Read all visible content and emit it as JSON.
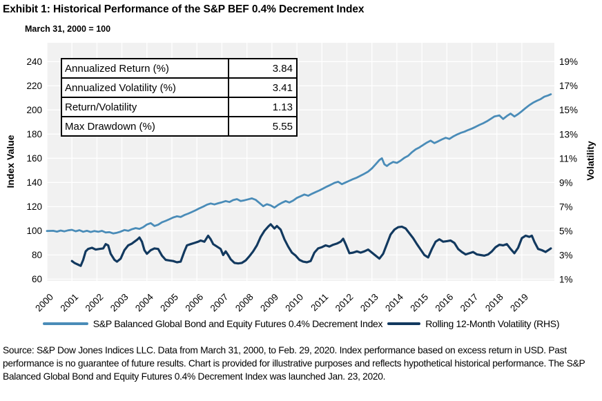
{
  "title": "Exhibit 1: Historical Performance of the S&P BEF 0.4% Decrement Index",
  "subtitle": "March 31, 2000 = 100",
  "stats_table": {
    "rows": [
      {
        "label": "Annualized Return (%)",
        "value": "3.84"
      },
      {
        "label": "Annualized Volatility (%)",
        "value": "3.41"
      },
      {
        "label": "Return/Volatility",
        "value": "1.13"
      },
      {
        "label": "Max Drawdown (%)",
        "value": "5.55"
      }
    ]
  },
  "legend": [
    {
      "label": "S&P Balanced Global Bond and Equity Futures 0.4% Decrement Index",
      "color": "#4A8CB8"
    },
    {
      "label": "Rolling 12-Month Volatility (RHS)",
      "color": "#12395F"
    }
  ],
  "source_text": "Source: S&P Dow Jones Indices LLC. Data from March 31, 2000, to Feb. 29, 2020. Index performance based on excess return in USD. Past performance is no guarantee of future results. Chart is provided for illustrative purposes and reflects hypothetical historical performance. The S&P Balanced Global Bond and Equity Futures 0.4% Decrement Index was launched Jan. 23, 2020.",
  "chart_data": {
    "type": "line",
    "title": "Historical Performance of the S&P BEF 0.4% Decrement Index",
    "plot_bg": "#F1F1F1",
    "gridline_color": "#FFFFFF",
    "grid": "on",
    "legend_position": "bottom",
    "x_axis": {
      "labels": [
        "2000",
        "2001",
        "2002",
        "2003",
        "2004",
        "2005",
        "2006",
        "2007",
        "2008",
        "2009",
        "2010",
        "2011",
        "2012",
        "2013",
        "2014",
        "2015",
        "2016",
        "2017",
        "2018",
        "2019"
      ],
      "range_years": [
        2000,
        2020.3
      ]
    },
    "left_axis": {
      "label": "Index Value",
      "ticks": [
        240,
        220,
        200,
        180,
        160,
        140,
        120,
        100,
        80,
        60
      ],
      "range": [
        60,
        240
      ]
    },
    "right_axis": {
      "label": "Volatility",
      "ticks": [
        19,
        17,
        15,
        13,
        11,
        9,
        7,
        5,
        3,
        1
      ],
      "suffix": "%",
      "range": [
        1,
        19
      ]
    },
    "series": [
      {
        "name": "S&P Balanced Global Bond and Equity Futures 0.4% Decrement Index",
        "axis": "left",
        "color": "#4A8CB8",
        "width": 2.8,
        "points": [
          [
            2000.0,
            99.8
          ],
          [
            2000.25,
            100.0
          ],
          [
            2000.4,
            99.3
          ],
          [
            2000.55,
            100.2
          ],
          [
            2000.7,
            99.5
          ],
          [
            2000.85,
            100.4
          ],
          [
            2001.0,
            100.8
          ],
          [
            2001.15,
            99.6
          ],
          [
            2001.3,
            100.5
          ],
          [
            2001.45,
            99.2
          ],
          [
            2001.6,
            100.0
          ],
          [
            2001.75,
            99.0
          ],
          [
            2001.9,
            99.8
          ],
          [
            2002.05,
            99.2
          ],
          [
            2002.2,
            99.9
          ],
          [
            2002.35,
            98.6
          ],
          [
            2002.5,
            98.9
          ],
          [
            2002.65,
            97.8
          ],
          [
            2002.8,
            98.4
          ],
          [
            2002.95,
            99.3
          ],
          [
            2003.1,
            100.6
          ],
          [
            2003.25,
            100.0
          ],
          [
            2003.4,
            101.3
          ],
          [
            2003.55,
            102.2
          ],
          [
            2003.7,
            101.6
          ],
          [
            2003.85,
            103.0
          ],
          [
            2004.0,
            105.2
          ],
          [
            2004.15,
            106.3
          ],
          [
            2004.3,
            104.0
          ],
          [
            2004.45,
            105.0
          ],
          [
            2004.6,
            107.0
          ],
          [
            2004.75,
            108.2
          ],
          [
            2004.9,
            109.6
          ],
          [
            2005.05,
            111.0
          ],
          [
            2005.2,
            112.0
          ],
          [
            2005.35,
            111.4
          ],
          [
            2005.5,
            113.0
          ],
          [
            2005.65,
            114.2
          ],
          [
            2005.8,
            115.6
          ],
          [
            2005.95,
            117.0
          ],
          [
            2006.1,
            118.6
          ],
          [
            2006.25,
            120.0
          ],
          [
            2006.4,
            121.6
          ],
          [
            2006.55,
            122.6
          ],
          [
            2006.7,
            121.8
          ],
          [
            2006.85,
            122.8
          ],
          [
            2007.0,
            123.6
          ],
          [
            2007.15,
            124.6
          ],
          [
            2007.3,
            123.8
          ],
          [
            2007.45,
            125.4
          ],
          [
            2007.6,
            126.2
          ],
          [
            2007.75,
            124.6
          ],
          [
            2007.9,
            125.2
          ],
          [
            2008.05,
            126.0
          ],
          [
            2008.2,
            126.8
          ],
          [
            2008.35,
            125.6
          ],
          [
            2008.5,
            123.0
          ],
          [
            2008.65,
            120.4
          ],
          [
            2008.8,
            122.0
          ],
          [
            2008.95,
            121.0
          ],
          [
            2009.1,
            119.2
          ],
          [
            2009.25,
            121.4
          ],
          [
            2009.4,
            123.2
          ],
          [
            2009.55,
            124.6
          ],
          [
            2009.7,
            123.4
          ],
          [
            2009.85,
            125.0
          ],
          [
            2010.0,
            127.2
          ],
          [
            2010.15,
            128.6
          ],
          [
            2010.3,
            130.0
          ],
          [
            2010.45,
            129.0
          ],
          [
            2010.6,
            130.6
          ],
          [
            2010.75,
            132.0
          ],
          [
            2010.9,
            133.4
          ],
          [
            2011.05,
            135.0
          ],
          [
            2011.2,
            136.6
          ],
          [
            2011.35,
            138.0
          ],
          [
            2011.5,
            139.6
          ],
          [
            2011.65,
            140.6
          ],
          [
            2011.8,
            138.6
          ],
          [
            2011.95,
            140.0
          ],
          [
            2012.1,
            141.4
          ],
          [
            2012.25,
            142.8
          ],
          [
            2012.4,
            144.0
          ],
          [
            2012.55,
            145.6
          ],
          [
            2012.7,
            147.2
          ],
          [
            2012.85,
            149.0
          ],
          [
            2013.0,
            151.6
          ],
          [
            2013.15,
            155.0
          ],
          [
            2013.3,
            158.6
          ],
          [
            2013.4,
            160.0
          ],
          [
            2013.5,
            155.0
          ],
          [
            2013.6,
            153.6
          ],
          [
            2013.7,
            155.2
          ],
          [
            2013.85,
            157.0
          ],
          [
            2014.0,
            156.2
          ],
          [
            2014.15,
            158.0
          ],
          [
            2014.3,
            160.4
          ],
          [
            2014.45,
            162.0
          ],
          [
            2014.6,
            165.0
          ],
          [
            2014.75,
            167.4
          ],
          [
            2014.9,
            169.0
          ],
          [
            2015.05,
            171.0
          ],
          [
            2015.2,
            173.0
          ],
          [
            2015.35,
            174.6
          ],
          [
            2015.5,
            172.6
          ],
          [
            2015.65,
            174.0
          ],
          [
            2015.8,
            175.6
          ],
          [
            2015.95,
            177.0
          ],
          [
            2016.1,
            176.0
          ],
          [
            2016.25,
            178.0
          ],
          [
            2016.4,
            179.6
          ],
          [
            2016.55,
            181.0
          ],
          [
            2016.7,
            182.0
          ],
          [
            2016.85,
            183.4
          ],
          [
            2017.0,
            184.6
          ],
          [
            2017.15,
            186.0
          ],
          [
            2017.3,
            187.6
          ],
          [
            2017.45,
            189.0
          ],
          [
            2017.6,
            190.6
          ],
          [
            2017.75,
            192.6
          ],
          [
            2017.9,
            194.6
          ],
          [
            2018.1,
            195.5
          ],
          [
            2018.25,
            192.5
          ],
          [
            2018.4,
            195.0
          ],
          [
            2018.55,
            197.0
          ],
          [
            2018.7,
            194.6
          ],
          [
            2018.85,
            196.6
          ],
          [
            2019.0,
            199.0
          ],
          [
            2019.15,
            201.6
          ],
          [
            2019.3,
            204.0
          ],
          [
            2019.45,
            206.0
          ],
          [
            2019.6,
            207.6
          ],
          [
            2019.75,
            209.0
          ],
          [
            2019.9,
            211.0
          ],
          [
            2020.05,
            212.0
          ],
          [
            2020.16,
            213.0
          ]
        ]
      },
      {
        "name": "Rolling 12-Month Volatility (RHS)",
        "axis": "right",
        "color": "#12395F",
        "width": 3.2,
        "points": [
          [
            2001.0,
            2.5
          ],
          [
            2001.1,
            2.35
          ],
          [
            2001.25,
            2.2
          ],
          [
            2001.35,
            2.1
          ],
          [
            2001.45,
            2.6
          ],
          [
            2001.55,
            3.3
          ],
          [
            2001.65,
            3.5
          ],
          [
            2001.8,
            3.6
          ],
          [
            2001.95,
            3.45
          ],
          [
            2002.1,
            3.5
          ],
          [
            2002.25,
            3.55
          ],
          [
            2002.35,
            3.9
          ],
          [
            2002.45,
            3.8
          ],
          [
            2002.55,
            3.1
          ],
          [
            2002.7,
            2.6
          ],
          [
            2002.8,
            2.45
          ],
          [
            2002.95,
            2.7
          ],
          [
            2003.1,
            3.4
          ],
          [
            2003.25,
            3.8
          ],
          [
            2003.4,
            3.95
          ],
          [
            2003.5,
            4.1
          ],
          [
            2003.6,
            4.25
          ],
          [
            2003.7,
            4.45
          ],
          [
            2003.8,
            4.1
          ],
          [
            2003.9,
            3.4
          ],
          [
            2004.0,
            3.1
          ],
          [
            2004.15,
            3.4
          ],
          [
            2004.3,
            3.55
          ],
          [
            2004.45,
            3.5
          ],
          [
            2004.6,
            2.95
          ],
          [
            2004.75,
            2.6
          ],
          [
            2004.9,
            2.55
          ],
          [
            2005.05,
            2.5
          ],
          [
            2005.2,
            2.4
          ],
          [
            2005.35,
            2.45
          ],
          [
            2005.5,
            3.3
          ],
          [
            2005.6,
            3.8
          ],
          [
            2005.75,
            3.9
          ],
          [
            2005.9,
            4.0
          ],
          [
            2006.05,
            4.1
          ],
          [
            2006.15,
            4.2
          ],
          [
            2006.3,
            4.1
          ],
          [
            2006.45,
            4.6
          ],
          [
            2006.55,
            4.3
          ],
          [
            2006.65,
            3.9
          ],
          [
            2006.8,
            3.7
          ],
          [
            2006.95,
            3.5
          ],
          [
            2007.05,
            3.0
          ],
          [
            2007.15,
            3.3
          ],
          [
            2007.25,
            3.0
          ],
          [
            2007.35,
            2.65
          ],
          [
            2007.5,
            2.35
          ],
          [
            2007.65,
            2.3
          ],
          [
            2007.8,
            2.35
          ],
          [
            2007.95,
            2.55
          ],
          [
            2008.1,
            2.9
          ],
          [
            2008.25,
            3.3
          ],
          [
            2008.4,
            3.8
          ],
          [
            2008.55,
            4.5
          ],
          [
            2008.7,
            5.0
          ],
          [
            2008.85,
            5.35
          ],
          [
            2008.95,
            5.55
          ],
          [
            2009.1,
            5.2
          ],
          [
            2009.2,
            5.4
          ],
          [
            2009.35,
            5.1
          ],
          [
            2009.5,
            4.3
          ],
          [
            2009.65,
            3.7
          ],
          [
            2009.8,
            3.2
          ],
          [
            2009.95,
            2.95
          ],
          [
            2010.1,
            2.6
          ],
          [
            2010.25,
            2.45
          ],
          [
            2010.4,
            2.4
          ],
          [
            2010.55,
            2.5
          ],
          [
            2010.7,
            3.2
          ],
          [
            2010.85,
            3.55
          ],
          [
            2011.0,
            3.65
          ],
          [
            2011.15,
            3.8
          ],
          [
            2011.3,
            3.7
          ],
          [
            2011.45,
            3.85
          ],
          [
            2011.6,
            3.95
          ],
          [
            2011.75,
            4.1
          ],
          [
            2011.85,
            4.35
          ],
          [
            2011.95,
            3.9
          ],
          [
            2012.1,
            3.15
          ],
          [
            2012.25,
            3.2
          ],
          [
            2012.4,
            3.3
          ],
          [
            2012.55,
            3.2
          ],
          [
            2012.7,
            3.3
          ],
          [
            2012.85,
            3.45
          ],
          [
            2013.0,
            3.2
          ],
          [
            2013.15,
            2.95
          ],
          [
            2013.3,
            2.7
          ],
          [
            2013.45,
            3.1
          ],
          [
            2013.6,
            3.9
          ],
          [
            2013.75,
            4.7
          ],
          [
            2013.9,
            5.1
          ],
          [
            2014.05,
            5.3
          ],
          [
            2014.2,
            5.35
          ],
          [
            2014.35,
            5.2
          ],
          [
            2014.5,
            4.8
          ],
          [
            2014.65,
            4.4
          ],
          [
            2014.8,
            3.9
          ],
          [
            2014.95,
            3.45
          ],
          [
            2015.1,
            3.0
          ],
          [
            2015.25,
            2.8
          ],
          [
            2015.4,
            3.5
          ],
          [
            2015.55,
            4.1
          ],
          [
            2015.7,
            4.3
          ],
          [
            2015.85,
            4.1
          ],
          [
            2016.0,
            4.15
          ],
          [
            2016.15,
            4.2
          ],
          [
            2016.3,
            4.0
          ],
          [
            2016.45,
            3.5
          ],
          [
            2016.6,
            3.25
          ],
          [
            2016.75,
            3.05
          ],
          [
            2016.9,
            3.15
          ],
          [
            2017.05,
            3.25
          ],
          [
            2017.2,
            3.05
          ],
          [
            2017.35,
            3.0
          ],
          [
            2017.5,
            2.95
          ],
          [
            2017.65,
            3.05
          ],
          [
            2017.8,
            3.3
          ],
          [
            2017.95,
            3.65
          ],
          [
            2018.1,
            3.85
          ],
          [
            2018.25,
            3.8
          ],
          [
            2018.4,
            3.9
          ],
          [
            2018.55,
            3.5
          ],
          [
            2018.7,
            3.15
          ],
          [
            2018.85,
            3.6
          ],
          [
            2019.0,
            4.4
          ],
          [
            2019.15,
            4.6
          ],
          [
            2019.3,
            4.5
          ],
          [
            2019.4,
            4.6
          ],
          [
            2019.5,
            4.1
          ],
          [
            2019.65,
            3.5
          ],
          [
            2019.8,
            3.4
          ],
          [
            2019.95,
            3.25
          ],
          [
            2020.16,
            3.55
          ]
        ]
      }
    ]
  }
}
